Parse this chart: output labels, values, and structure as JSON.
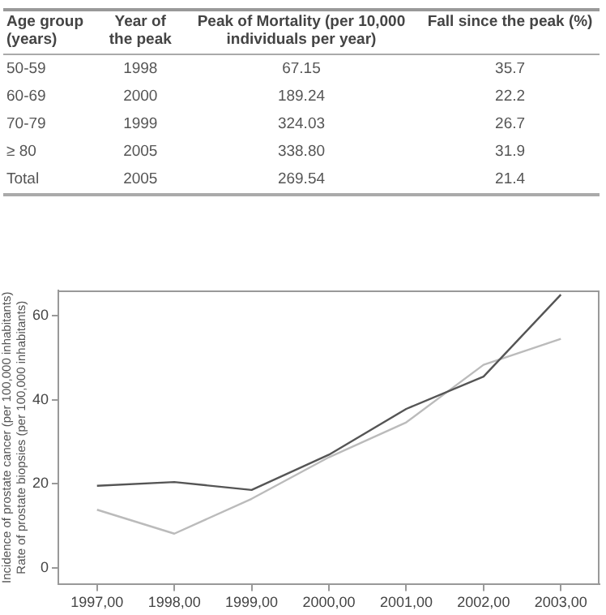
{
  "chart_data": [
    {
      "type": "other",
      "categories": [
        "Age group (years)",
        "Year of the peak",
        "Peak of Mortality (per 10,000 individuals per year)",
        "Fall since the peak (%)"
      ],
      "annotations": [
        "50-59",
        "1998",
        "67.15",
        "35.7",
        "60-69",
        "2000",
        "189.24",
        "22.2",
        "70-79",
        "1999",
        "324.03",
        "26.7",
        "≥ 80",
        "2005",
        "338.80",
        "31.9",
        "Total",
        "2005",
        "269.54",
        "21.4"
      ]
    },
    {
      "type": "line",
      "categories": [
        "1997,00",
        "1998,00",
        "1999,00",
        "2000,00",
        "2001,00",
        "2002,00",
        "2003,00"
      ],
      "ylabel": "Incidence of prostate cancer (per 100,000 inhabitants)\nRate of prostate biopsies (per 100,000 inhabitants)",
      "ylim": [
        -4,
        66
      ],
      "yticks": [
        0,
        20,
        40,
        60
      ],
      "grid": false,
      "legend": false,
      "marker": "none",
      "line_style": "solid",
      "series": [
        {
          "color": "#555555",
          "values": [
            19.5,
            20.4,
            18.5,
            26.9,
            37.8,
            45.5,
            65
          ]
        },
        {
          "color": "#bbbbbb",
          "values": [
            13.8,
            8.1,
            16.4,
            26.3,
            34.6,
            48.3,
            54.5
          ]
        }
      ]
    }
  ]
}
